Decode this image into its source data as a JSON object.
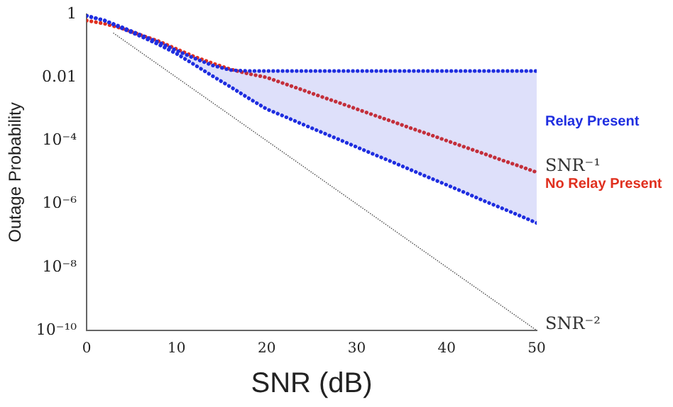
{
  "chart_data": {
    "type": "line",
    "xlabel": "SNR (dB)",
    "ylabel": "Outage Probability",
    "log": "y",
    "x": [
      0,
      2,
      4,
      6,
      8,
      10,
      12,
      14,
      16,
      18,
      20,
      22,
      24,
      26,
      28,
      30,
      32,
      34,
      36,
      38,
      40,
      42,
      44,
      46,
      48,
      50
    ],
    "xlim": [
      0,
      50
    ],
    "xticks": [
      0,
      10,
      20,
      30,
      40,
      50
    ],
    "ylim": [
      1e-10,
      1
    ],
    "yticks": [
      1,
      0.01,
      {
        "value": 0.0001,
        "label": "10⁻⁴"
      },
      {
        "value": 1e-06,
        "label": "10⁻⁶"
      },
      {
        "value": 1e-08,
        "label": "10⁻⁸"
      },
      {
        "value": 1e-10,
        "label": "10⁻¹⁰"
      }
    ],
    "grid": false,
    "legend": false,
    "marker": "none",
    "line_style": "dotted",
    "series": [
      {
        "name": "Relay Present",
        "color": "#1f2ee0",
        "values": [
          0.89,
          0.63,
          0.38,
          0.22,
          0.13,
          0.071,
          0.04,
          0.024,
          0.017,
          0.016,
          0.016,
          0.016,
          0.016,
          0.016,
          0.016,
          0.016,
          0.016,
          0.016,
          0.016,
          0.016,
          0.016,
          0.016,
          0.016,
          0.016,
          0.016,
          0.016
        ],
        "upper": [
          0.89,
          0.63,
          0.38,
          0.22,
          0.13,
          0.071,
          0.04,
          0.024,
          0.017,
          0.016,
          0.016,
          0.016,
          0.016,
          0.016,
          0.016,
          0.016,
          0.016,
          0.016,
          0.016,
          0.016,
          0.016,
          0.016,
          0.016,
          0.016,
          0.016,
          0.016
        ],
        "lower": [
          0.89,
          0.63,
          0.35,
          0.2,
          0.11,
          0.056,
          0.025,
          0.011,
          0.005,
          0.0022,
          0.001,
          0.00058,
          0.00033,
          0.00019,
          0.00011,
          6.3e-05,
          3.6e-05,
          2.1e-05,
          1.2e-05,
          6.9e-06,
          4e-06,
          2.3e-06,
          1.3e-06,
          7.6e-07,
          4.4e-07,
          2.5e-07
        ]
      },
      {
        "color": "#1f2ee0",
        "values": [
          0.89,
          0.63,
          0.35,
          0.2,
          0.11,
          0.056,
          0.025,
          0.011,
          0.005,
          0.0022,
          0.001,
          0.00058,
          0.00033,
          0.00019,
          0.00011,
          6.3e-05,
          3.6e-05,
          2.1e-05,
          1.2e-05,
          6.9e-06,
          4e-06,
          2.3e-06,
          1.3e-06,
          7.6e-07,
          4.4e-07,
          2.5e-07
        ]
      },
      {
        "name": "No Relay Present",
        "color": "#e0301f",
        "values": [
          0.63,
          0.5,
          0.35,
          0.22,
          0.14,
          0.079,
          0.045,
          0.028,
          0.018,
          0.013,
          0.01,
          0.0063,
          0.004,
          0.0025,
          0.0016,
          0.001,
          0.00063,
          0.0004,
          0.00025,
          0.00016,
          0.0001,
          6.3e-05,
          4e-05,
          2.5e-05,
          1.6e-05,
          1e-05
        ]
      },
      {
        "color": "#555555",
        "x": [
          3,
          50
        ],
        "values": [
          0.25,
          1e-10
        ],
        "line_style": "dotted"
      }
    ],
    "annotations": [
      {
        "text": "SNR⁻¹",
        "x": 50,
        "y": 1e-05
      },
      {
        "text": "SNR⁻²",
        "x": 50,
        "y": 1e-10
      }
    ]
  }
}
